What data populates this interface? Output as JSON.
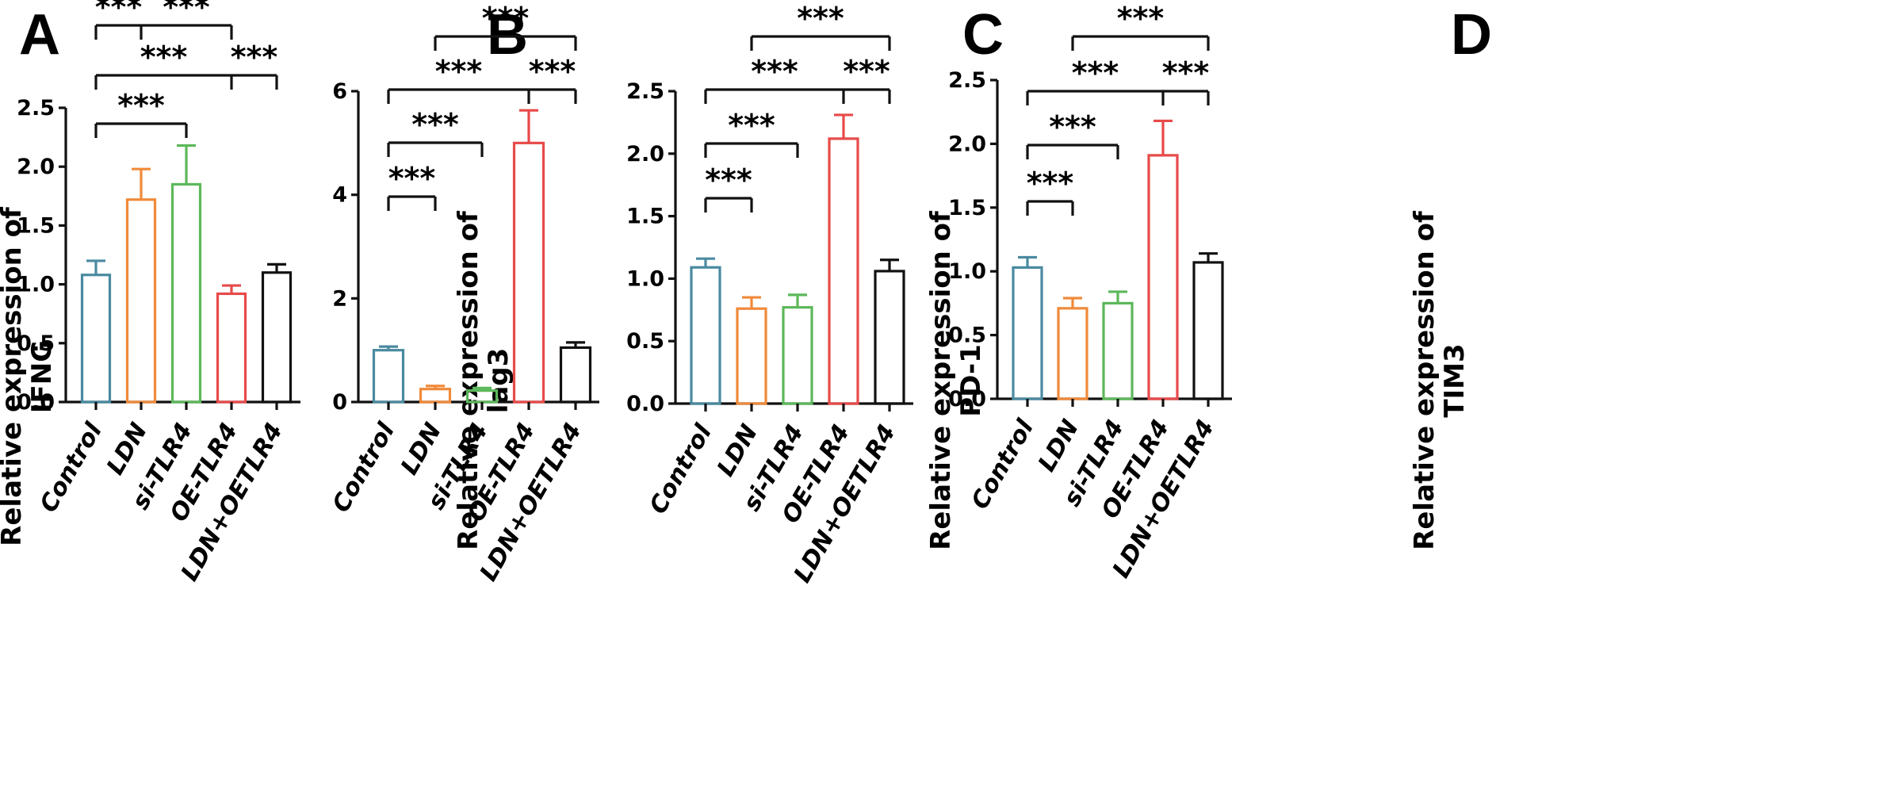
{
  "figure": {
    "categories": [
      "Control",
      "LDN",
      "si-TLR4",
      "OE-TLR4",
      "LDN+OETLR4"
    ],
    "colors": [
      "#4a8aa0",
      "#f08a3a",
      "#5cb85a",
      "#e84a4a",
      "#111111"
    ]
  },
  "chart_data": [
    {
      "type": "bar",
      "panel": "A",
      "ylabel_line1": "Relative expression of",
      "ylabel_line2": "IFNG",
      "categories": [
        "Control",
        "LDN",
        "si-TLR4",
        "OE-TLR4",
        "LDN+OETLR4"
      ],
      "values": [
        1.08,
        1.72,
        1.85,
        0.92,
        1.1
      ],
      "errors": [
        0.12,
        0.26,
        0.33,
        0.07,
        0.07
      ],
      "ylim": [
        0,
        2.5
      ],
      "yticks": [
        0,
        0.5,
        1.0,
        1.5,
        2.0,
        2.5
      ],
      "ytick_labels": [
        "0.0",
        "0.5",
        "1.0",
        "1.5",
        "2.0",
        "2.5"
      ],
      "significance": [
        {
          "from": 0,
          "to": 2,
          "label": "***"
        },
        {
          "from": 0,
          "to": 4,
          "split": 3,
          "label_left": "***",
          "label_right": "***"
        },
        {
          "from": 0,
          "to": 3,
          "split": 1,
          "label_left": "***",
          "label_right": "***"
        }
      ]
    },
    {
      "type": "bar",
      "panel": "B",
      "ylabel_line1": "Relative expression of",
      "ylabel_line2": "lag3",
      "categories": [
        "Control",
        "LDN",
        "si-TLR4",
        "OE-TLR4",
        "LDN+OETLR4"
      ],
      "values": [
        1.0,
        0.25,
        0.22,
        5.0,
        1.05
      ],
      "errors": [
        0.07,
        0.06,
        0.05,
        0.63,
        0.1
      ],
      "ylim": [
        0,
        6
      ],
      "yticks": [
        0,
        2,
        4,
        6
      ],
      "ytick_labels": [
        "0",
        "2",
        "4",
        "6"
      ],
      "significance": [
        {
          "from": 0,
          "to": 1,
          "label": "***"
        },
        {
          "from": 0,
          "to": 2,
          "label": "***"
        },
        {
          "from": 0,
          "to": 4,
          "split": 3,
          "label_left": "***",
          "label_right": "***"
        },
        {
          "from": 1,
          "to": 4,
          "label": "***"
        }
      ]
    },
    {
      "type": "bar",
      "panel": "C",
      "ylabel_line1": "Relative expression of",
      "ylabel_line2": "PD-1",
      "categories": [
        "Control",
        "LDN",
        "si-TLR4",
        "OE-TLR4",
        "LDN+OETLR4"
      ],
      "values": [
        1.09,
        0.76,
        0.77,
        2.12,
        1.06
      ],
      "errors": [
        0.07,
        0.09,
        0.1,
        0.19,
        0.09
      ],
      "ylim": [
        0,
        2.5
      ],
      "yticks": [
        0,
        0.5,
        1.0,
        1.5,
        2.0,
        2.5
      ],
      "ytick_labels": [
        "0.0",
        "0.5",
        "1.0",
        "1.5",
        "2.0",
        "2.5"
      ],
      "significance": [
        {
          "from": 0,
          "to": 1,
          "label": "***"
        },
        {
          "from": 0,
          "to": 2,
          "label": "***"
        },
        {
          "from": 0,
          "to": 4,
          "split": 3,
          "label_left": "***",
          "label_right": "***"
        },
        {
          "from": 1,
          "to": 4,
          "label": "***"
        }
      ]
    },
    {
      "type": "bar",
      "panel": "D",
      "ylabel_line1": "Relative expression of",
      "ylabel_line2": "TIM3",
      "categories": [
        "Control",
        "LDN",
        "si-TLR4",
        "OE-TLR4",
        "LDN+OETLR4"
      ],
      "values": [
        1.03,
        0.71,
        0.75,
        1.91,
        1.07
      ],
      "errors": [
        0.08,
        0.08,
        0.09,
        0.27,
        0.07
      ],
      "ylim": [
        0,
        2.5
      ],
      "yticks": [
        0,
        0.5,
        1.0,
        1.5,
        2.0,
        2.5
      ],
      "ytick_labels": [
        "0.0",
        "0.5",
        "1.0",
        "1.5",
        "2.0",
        "2.5"
      ],
      "significance": [
        {
          "from": 0,
          "to": 1,
          "label": "***"
        },
        {
          "from": 0,
          "to": 2,
          "label": "***"
        },
        {
          "from": 0,
          "to": 4,
          "split": 3,
          "label_left": "***",
          "label_right": "***"
        },
        {
          "from": 1,
          "to": 4,
          "label": "***"
        }
      ]
    }
  ]
}
